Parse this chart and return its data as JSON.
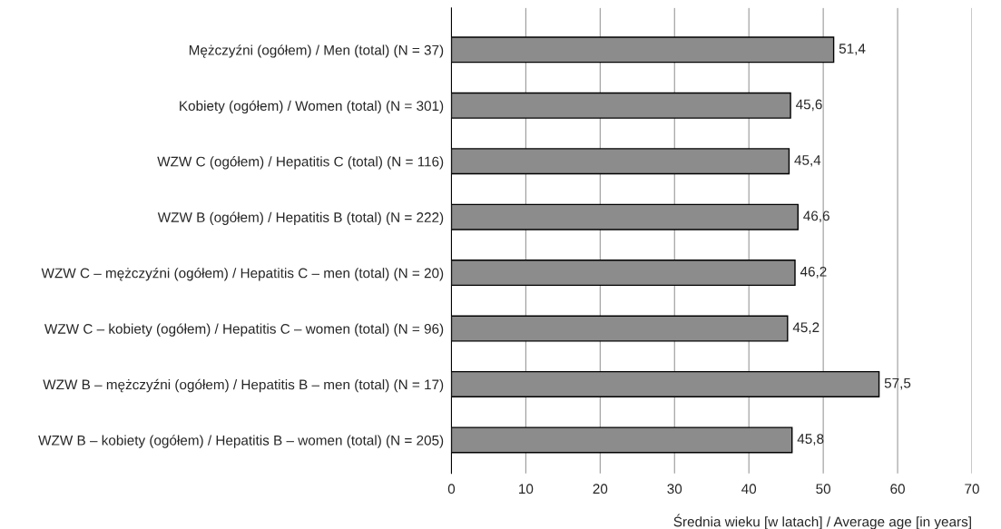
{
  "chart_data": {
    "type": "bar",
    "orientation": "horizontal",
    "categories": [
      "Mężczyźni (ogółem) / Men (total) (N = 37)",
      "Kobiety (ogółem) / Women (total) (N = 301)",
      "WZW C (ogółem) / Hepatitis C (total) (N = 116)",
      "WZW B (ogółem) / Hepatitis B (total) (N = 222)",
      "WZW C – mężczyźni (ogółem) / Hepatitis C – men (total) (N = 20)",
      "WZW C – kobiety (ogółem) / Hepatitis C – women (total) (N = 96)",
      "WZW B – mężczyźni (ogółem) / Hepatitis B – men (total) (N = 17)",
      "WZW B – kobiety (ogółem) / Hepatitis B – women (total) (N = 205)"
    ],
    "values": [
      51.4,
      45.6,
      45.4,
      46.6,
      46.2,
      45.2,
      57.5,
      45.8
    ],
    "value_labels": [
      "51,4",
      "45,6",
      "45,4",
      "46,6",
      "46,2",
      "45,2",
      "57,5",
      "45,8"
    ],
    "color": "#8c8c8c",
    "xlabel": "Średnia wieku [w latach] / Average age [in years]",
    "xlim": [
      0,
      70
    ],
    "xticks": [
      0,
      10,
      20,
      30,
      40,
      50,
      60,
      70
    ],
    "grid": "x",
    "legend": false
  }
}
